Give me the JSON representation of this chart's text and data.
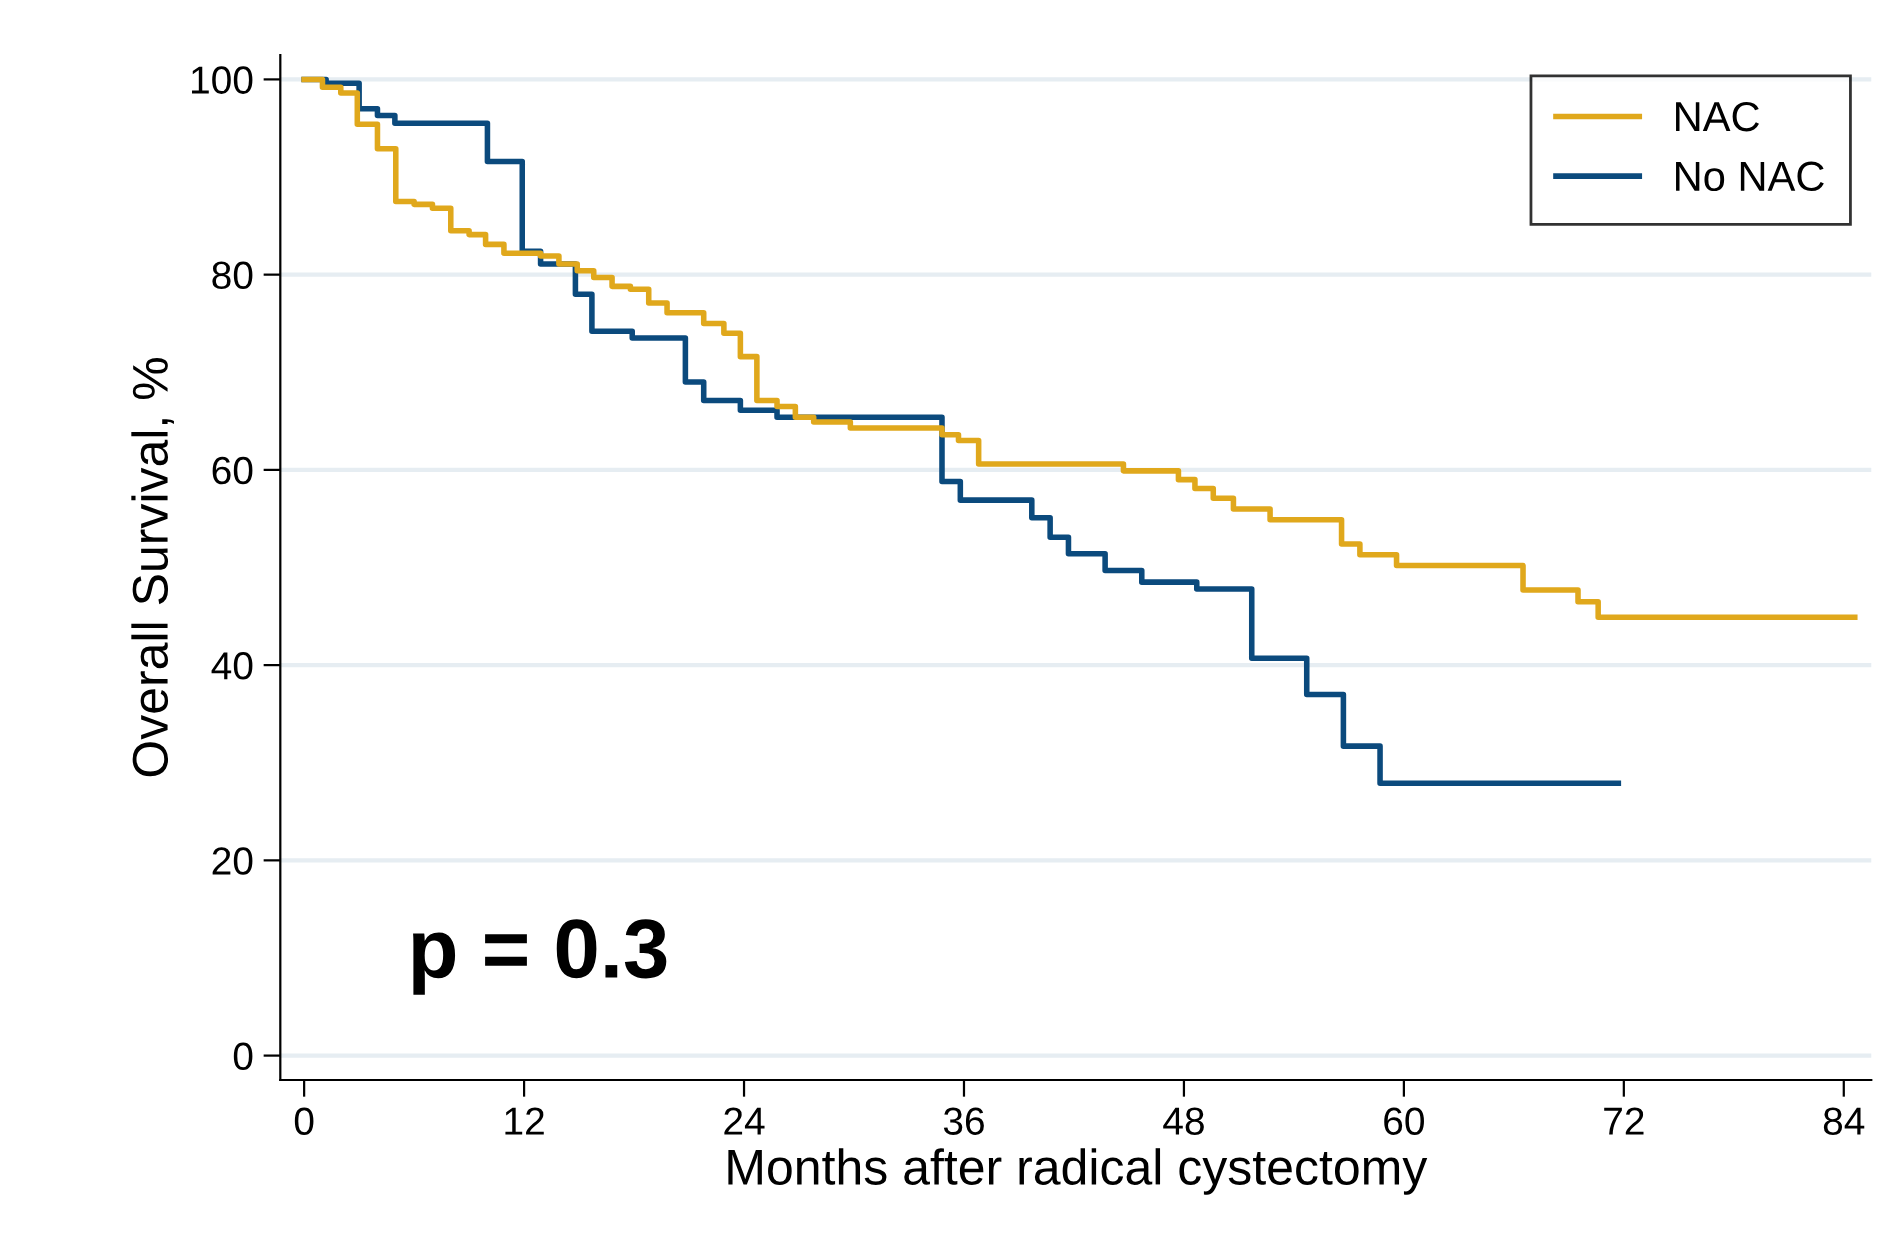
{
  "chart_data": {
    "type": "step",
    "xlabel": "Months after radical cystectomy",
    "ylabel": "Overall Survival, %",
    "xlim": [
      -1.3,
      85.5
    ],
    "ylim": [
      -2.5,
      102.5
    ],
    "xticks": [
      0,
      12,
      24,
      36,
      48,
      60,
      72,
      84
    ],
    "yticks": [
      0,
      20,
      40,
      60,
      80,
      100
    ],
    "grid": "y",
    "legend": "top right",
    "line_style": "solid",
    "marker": "none",
    "annotations": [
      "p = 0.3"
    ],
    "series": [
      {
        "name": "NAC",
        "color": "#e0a81c",
        "x": [
          0,
          1.0,
          2.0,
          2.9,
          4.0,
          5.0,
          6.0,
          7.0,
          8.0,
          9.0,
          9.9,
          10.9,
          12.9,
          13.9,
          14.9,
          15.8,
          16.8,
          17.8,
          18.8,
          19.8,
          21.8,
          22.9,
          23.8,
          24.7,
          25.8,
          26.8,
          27.8,
          29.8,
          34.8,
          35.7,
          36.8,
          44.7,
          47.7,
          48.6,
          49.6,
          50.7,
          52.7,
          56.6,
          57.6,
          59.6,
          66.5,
          69.5,
          70.6,
          84.6
        ],
        "values": [
          100,
          99.2,
          98.6,
          95.4,
          92.9,
          87.5,
          87.2,
          86.8,
          84.5,
          84.1,
          83.1,
          82.2,
          81.9,
          81.1,
          80.4,
          79.7,
          78.8,
          78.5,
          77.1,
          76.1,
          75.0,
          74.0,
          71.6,
          67.1,
          66.5,
          65.4,
          64.9,
          64.3,
          63.6,
          63.0,
          60.6,
          59.9,
          59.0,
          58.1,
          57.1,
          56.0,
          54.9,
          52.4,
          51.3,
          50.2,
          47.7,
          46.5,
          44.9,
          44.9
        ]
      },
      {
        "name": "No NAC",
        "color": "#0b4a7d",
        "x": [
          0,
          1.2,
          3.0,
          4.0,
          4.95,
          10.0,
          11.9,
          12.9,
          14.8,
          15.7,
          17.9,
          20.8,
          21.8,
          23.8,
          25.8,
          34.8,
          35.8,
          39.7,
          40.7,
          41.7,
          43.7,
          45.7,
          48.7,
          51.7,
          54.7,
          56.7,
          58.7,
          71.7
        ],
        "values": [
          100,
          99.6,
          97.0,
          96.3,
          95.5,
          91.6,
          82.4,
          81.1,
          78.0,
          74.2,
          73.5,
          69.0,
          67.1,
          66.1,
          65.4,
          58.8,
          56.9,
          55.1,
          53.1,
          51.4,
          49.7,
          48.5,
          47.8,
          40.7,
          37.0,
          31.7,
          27.9,
          27.9
        ]
      }
    ]
  }
}
